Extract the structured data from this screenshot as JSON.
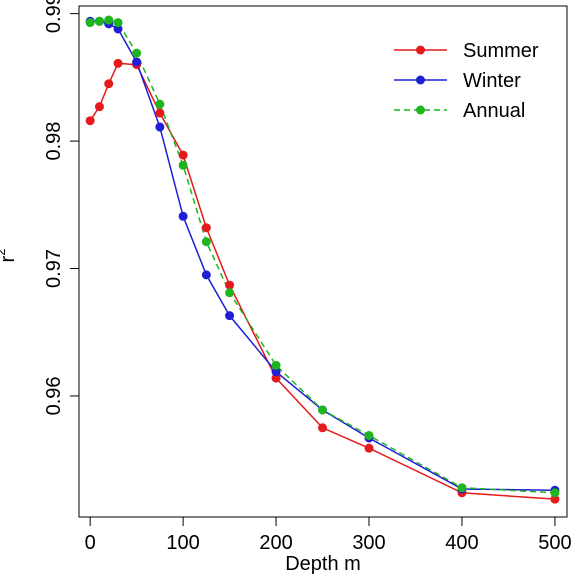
{
  "chart_data": {
    "type": "line",
    "title": "",
    "xlabel": "Depth m",
    "ylabel_base": "r",
    "ylabel_sup": "2",
    "xlim": [
      -12,
      513
    ],
    "ylim": [
      0.9505,
      0.9906
    ],
    "xticks": [
      0,
      100,
      200,
      300,
      400,
      500
    ],
    "xtick_labels": [
      "0",
      "100",
      "200",
      "300",
      "400",
      "500"
    ],
    "yticks": [
      0.96,
      0.97,
      0.98,
      0.99
    ],
    "ytick_labels": [
      "0.96",
      "0.97",
      "0.98",
      "0.99"
    ],
    "grid": false,
    "legend_position": "top-right",
    "series": [
      {
        "name": "Summer",
        "color": "#e41a1c",
        "line_style": "solid",
        "x": [
          0,
          10,
          20,
          30,
          50,
          75,
          100,
          125,
          150,
          200,
          250,
          300,
          400,
          500
        ],
        "y": [
          0.9816,
          0.9827,
          0.9845,
          0.9861,
          0.986,
          0.9822,
          0.9789,
          0.9732,
          0.9687,
          0.9614,
          0.9575,
          0.9559,
          0.9524,
          0.9519
        ]
      },
      {
        "name": "Winter",
        "color": "#1f1fd6",
        "line_style": "solid",
        "x": [
          0,
          10,
          20,
          30,
          50,
          75,
          100,
          125,
          150,
          200,
          250,
          300,
          400,
          500
        ],
        "y": [
          0.9894,
          0.9894,
          0.9892,
          0.9888,
          0.9862,
          0.9811,
          0.9741,
          0.9695,
          0.9663,
          0.9619,
          0.9589,
          0.9567,
          0.9527,
          0.9526
        ]
      },
      {
        "name": "Annual",
        "color": "#1fb51f",
        "line_style": "dashed",
        "x": [
          0,
          10,
          20,
          30,
          50,
          75,
          100,
          125,
          150,
          200,
          250,
          300,
          400,
          500
        ],
        "y": [
          0.9893,
          0.9894,
          0.9895,
          0.9893,
          0.9869,
          0.9829,
          0.9781,
          0.9721,
          0.9681,
          0.9624,
          0.9589,
          0.9569,
          0.9528,
          0.9524
        ]
      }
    ]
  }
}
